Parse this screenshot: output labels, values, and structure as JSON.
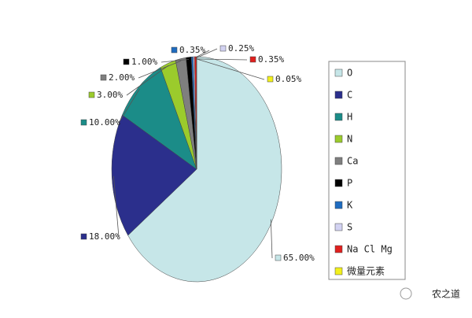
{
  "chart_data": {
    "type": "pie",
    "categories": [
      "O",
      "C",
      "H",
      "N",
      "Ca",
      "P",
      "K",
      "S",
      "Na Cl Mg",
      "微量元素"
    ],
    "values": [
      65,
      18,
      10,
      3,
      2,
      1,
      0.35,
      0.25,
      0.35,
      0.05
    ],
    "value_labels": [
      "65.00%",
      "18.00%",
      "10.00%",
      "3.00%",
      "2.00%",
      "1.00%",
      "0.35%",
      "0.25%",
      "0.35%",
      "0.05%"
    ],
    "colors": [
      "#c6e6e8",
      "#2b2f8c",
      "#1b8c88",
      "#9bcb2c",
      "#7f7f7f",
      "#000000",
      "#1f6cc0",
      "#d2d2f2",
      "#e0201e",
      "#f2f01c"
    ],
    "legend": "right"
  },
  "watermark": "农之道"
}
